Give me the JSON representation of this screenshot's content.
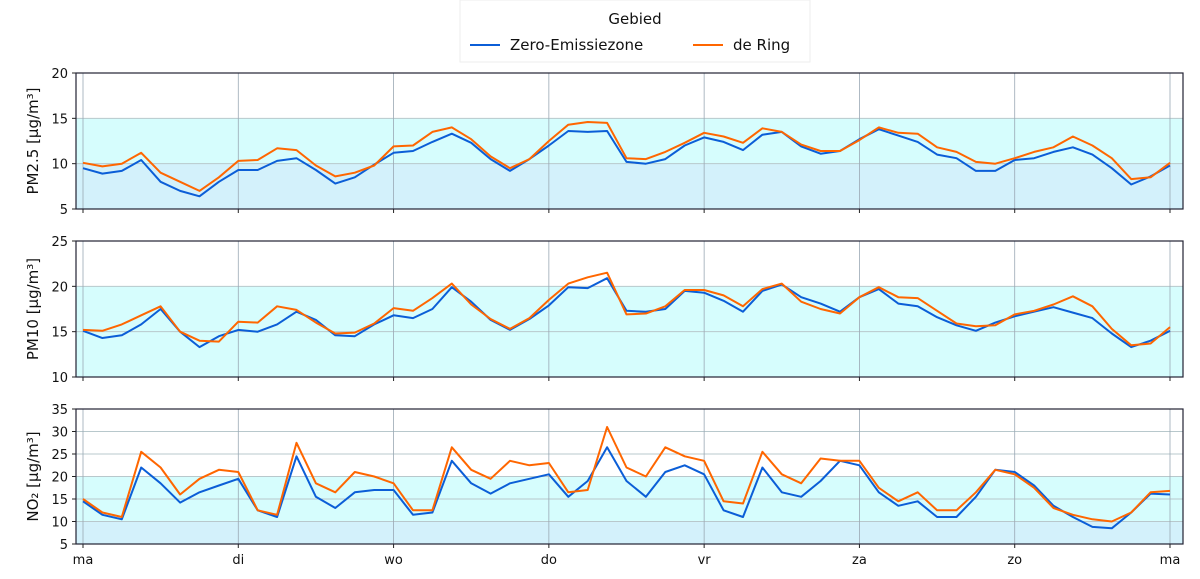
{
  "legend": {
    "title": "Gebied",
    "entries": [
      {
        "label": "Zero-Emissiezone",
        "color": "#0b5ed7"
      },
      {
        "label": "de Ring",
        "color": "#ff6600"
      }
    ]
  },
  "x_tick_labels": [
    "ma",
    "di",
    "wo",
    "do",
    "vr",
    "za",
    "zo",
    "ma"
  ],
  "chart_data": [
    {
      "type": "line",
      "ylabel": "PM2.5 [µg/m³]",
      "ylim": [
        5,
        20
      ],
      "yticks": [
        5,
        10,
        15,
        20
      ],
      "bands": [
        {
          "from": 5,
          "to": 10,
          "color": "#d3f1fb"
        },
        {
          "from": 10,
          "to": 15,
          "color": "#d6fdfd"
        }
      ],
      "x_hours_step": 3,
      "series": [
        {
          "name": "Zero-Emissiezone",
          "values": [
            9.5,
            8.9,
            9.2,
            10.4,
            8.0,
            7.0,
            6.4,
            8.0,
            9.3,
            9.3,
            10.3,
            10.6,
            9.3,
            7.8,
            8.5,
            9.9,
            11.2,
            11.4,
            12.4,
            13.3,
            12.3,
            10.5,
            9.2,
            10.5,
            12.0,
            13.6,
            13.5,
            13.6,
            10.2,
            10.0,
            10.5,
            12.0,
            12.9,
            12.4,
            11.5,
            13.2,
            13.5,
            11.9,
            11.1,
            11.4,
            12.7,
            13.8,
            13.1,
            12.4,
            11.0,
            10.6,
            9.2,
            9.2,
            10.4,
            10.6,
            11.3,
            11.8,
            11.0,
            9.5,
            7.7,
            8.6,
            9.8
          ]
        },
        {
          "name": "de Ring",
          "values": [
            10.1,
            9.7,
            10.0,
            11.2,
            9.0,
            8.0,
            7.0,
            8.5,
            10.3,
            10.4,
            11.7,
            11.5,
            9.8,
            8.6,
            9.0,
            9.8,
            11.9,
            12.0,
            13.5,
            14.0,
            12.7,
            10.8,
            9.5,
            10.5,
            12.5,
            14.3,
            14.6,
            14.5,
            10.6,
            10.5,
            11.3,
            12.3,
            13.4,
            13.0,
            12.3,
            13.9,
            13.5,
            12.1,
            11.4,
            11.4,
            12.6,
            14.0,
            13.4,
            13.3,
            11.8,
            11.3,
            10.2,
            10.0,
            10.6,
            11.3,
            11.8,
            13.0,
            12.0,
            10.6,
            8.3,
            8.5,
            10.1
          ]
        }
      ]
    },
    {
      "type": "line",
      "ylabel": "PM10 [µg/m³]",
      "ylim": [
        10,
        25
      ],
      "yticks": [
        10,
        15,
        20,
        25
      ],
      "bands": [
        {
          "from": 10,
          "to": 20,
          "color": "#d6fdfd"
        }
      ],
      "x_hours_step": 3,
      "series": [
        {
          "name": "Zero-Emissiezone",
          "values": [
            15.1,
            14.3,
            14.6,
            15.8,
            17.5,
            15.0,
            13.3,
            14.5,
            15.2,
            15.0,
            15.8,
            17.2,
            16.3,
            14.6,
            14.5,
            15.8,
            16.8,
            16.5,
            17.5,
            19.9,
            18.3,
            16.3,
            15.2,
            16.4,
            17.9,
            19.9,
            19.8,
            20.9,
            17.3,
            17.2,
            17.5,
            19.5,
            19.3,
            18.4,
            17.2,
            19.5,
            20.2,
            18.8,
            18.1,
            17.2,
            18.8,
            19.7,
            18.1,
            17.8,
            16.6,
            15.7,
            15.1,
            16.0,
            16.7,
            17.2,
            17.7,
            17.1,
            16.5,
            14.8,
            13.3,
            14.0,
            15.1
          ]
        },
        {
          "name": "de Ring",
          "values": [
            15.2,
            15.1,
            15.8,
            16.8,
            17.8,
            15.0,
            14.0,
            13.9,
            16.1,
            16.0,
            17.8,
            17.4,
            16.0,
            14.8,
            14.9,
            15.9,
            17.6,
            17.3,
            18.7,
            20.3,
            18.0,
            16.4,
            15.3,
            16.5,
            18.5,
            20.3,
            21.0,
            21.5,
            16.9,
            17.0,
            17.8,
            19.6,
            19.6,
            19.0,
            17.8,
            19.7,
            20.3,
            18.3,
            17.5,
            17.0,
            18.8,
            19.9,
            18.8,
            18.7,
            17.3,
            15.9,
            15.6,
            15.7,
            16.9,
            17.3,
            18.0,
            18.9,
            17.8,
            15.3,
            13.5,
            13.7,
            15.5
          ]
        }
      ]
    },
    {
      "type": "line",
      "ylabel": "NO₂ [µg/m³]",
      "ylim": [
        5,
        35
      ],
      "yticks": [
        5,
        10,
        15,
        20,
        25,
        30,
        35
      ],
      "bands": [
        {
          "from": 5,
          "to": 10,
          "color": "#d3f1fb"
        },
        {
          "from": 10,
          "to": 20,
          "color": "#d6fdfd"
        }
      ],
      "x_hours_step": 3,
      "series": [
        {
          "name": "Zero-Emissiezone",
          "values": [
            14.5,
            11.5,
            10.5,
            22.0,
            18.5,
            14.2,
            16.5,
            18.0,
            19.5,
            12.5,
            11.0,
            24.5,
            15.5,
            13.0,
            16.5,
            17.0,
            17.0,
            11.5,
            12.0,
            23.5,
            18.5,
            16.2,
            18.5,
            19.5,
            20.5,
            15.5,
            19.0,
            26.5,
            19.0,
            15.5,
            21.0,
            22.5,
            20.5,
            12.5,
            11.0,
            22.0,
            16.5,
            15.5,
            19.0,
            23.5,
            22.5,
            16.5,
            13.5,
            14.5,
            11.0,
            11.0,
            15.5,
            21.5,
            21.0,
            18.0,
            13.5,
            11.0,
            8.8,
            8.5,
            12.0,
            16.2,
            16.0
          ]
        },
        {
          "name": "de Ring",
          "values": [
            15.0,
            12.0,
            11.0,
            25.5,
            22.0,
            16.0,
            19.5,
            21.5,
            21.0,
            12.5,
            11.5,
            27.5,
            18.5,
            16.5,
            21.0,
            20.0,
            18.5,
            12.5,
            12.5,
            26.5,
            21.5,
            19.5,
            23.5,
            22.5,
            23.0,
            16.5,
            17.0,
            31.0,
            22.0,
            20.0,
            26.5,
            24.5,
            23.5,
            14.5,
            14.0,
            25.5,
            20.5,
            18.5,
            24.0,
            23.5,
            23.5,
            17.5,
            14.5,
            16.5,
            12.5,
            12.5,
            16.5,
            21.5,
            20.5,
            17.5,
            13.0,
            11.5,
            10.5,
            10.0,
            12.0,
            16.5,
            16.8
          ]
        }
      ]
    }
  ]
}
